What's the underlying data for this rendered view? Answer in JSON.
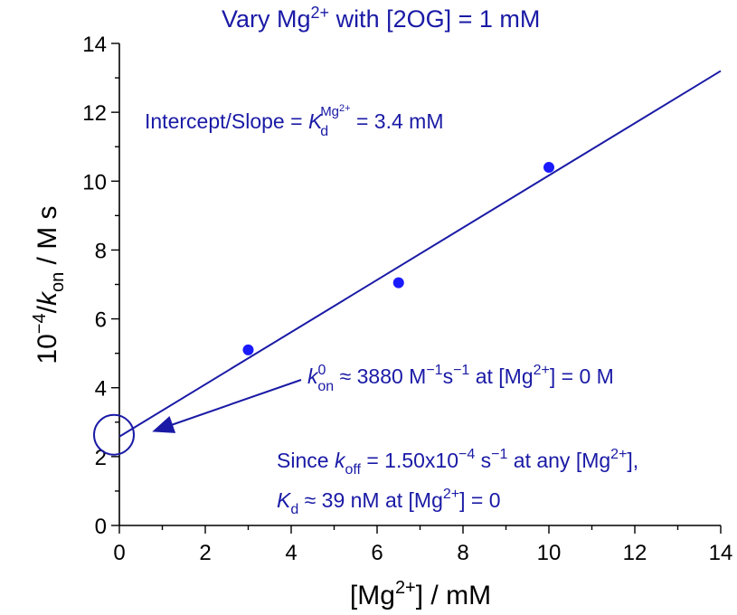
{
  "colors": {
    "accent": "#1a1aa6",
    "marker": "#1a1aff",
    "axis": "#000000"
  },
  "chart_data": {
    "type": "scatter",
    "title_parts": {
      "pre": "Vary Mg",
      "sup": "2+",
      "post": " with [2OG] = 1 mM"
    },
    "xlabel_parts": {
      "pre": "[Mg",
      "sup": "2+",
      "post": "] / mM"
    },
    "ylabel_parts": {
      "pre": "10",
      "sup": "−4",
      "mid": "/",
      "k": "k",
      "sub": "on",
      "post": " / M s"
    },
    "xlim": [
      0,
      14
    ],
    "ylim": [
      0,
      14
    ],
    "x_ticks": [
      0,
      2,
      4,
      6,
      8,
      10,
      12,
      14
    ],
    "y_ticks": [
      0,
      2,
      4,
      6,
      8,
      10,
      12,
      14
    ],
    "series": [
      {
        "marker": "circle",
        "x": [
          3,
          6.5,
          10
        ],
        "y": [
          5.1,
          7.05,
          10.4
        ]
      }
    ],
    "fit_line": {
      "x": [
        0,
        14
      ],
      "y": [
        2.58,
        13.2
      ]
    },
    "highlight_circle": {
      "x": 0,
      "y": 2.58
    },
    "annotations": {
      "slope": {
        "pre": "Intercept/Slope = ",
        "k": "K",
        "sub": "d",
        "sup": "Mg",
        "supsup": "2+",
        "post": " = 3.4 mM"
      },
      "kon": {
        "k": "k",
        "sup": "0",
        "sub": "on",
        "t1": " ≈ 3880 M",
        "e1": "−1",
        "t2": "s",
        "e2": "−1",
        "t3": " at [Mg",
        "e3": "2+",
        "t4": "] = 0 M"
      },
      "koff": {
        "t1": "Since ",
        "k": "k",
        "sub": "off",
        "t2": " = 1.50x10",
        "e1": "−4",
        "t3": " s",
        "e2": "−1",
        "t4": " at any [Mg",
        "e3": "2+",
        "t5": "],"
      },
      "kd": {
        "k": "K",
        "sub": "d",
        "t1": " ≈ 39 nM at [Mg",
        "e1": "2+",
        "t2": "] = 0"
      }
    }
  }
}
